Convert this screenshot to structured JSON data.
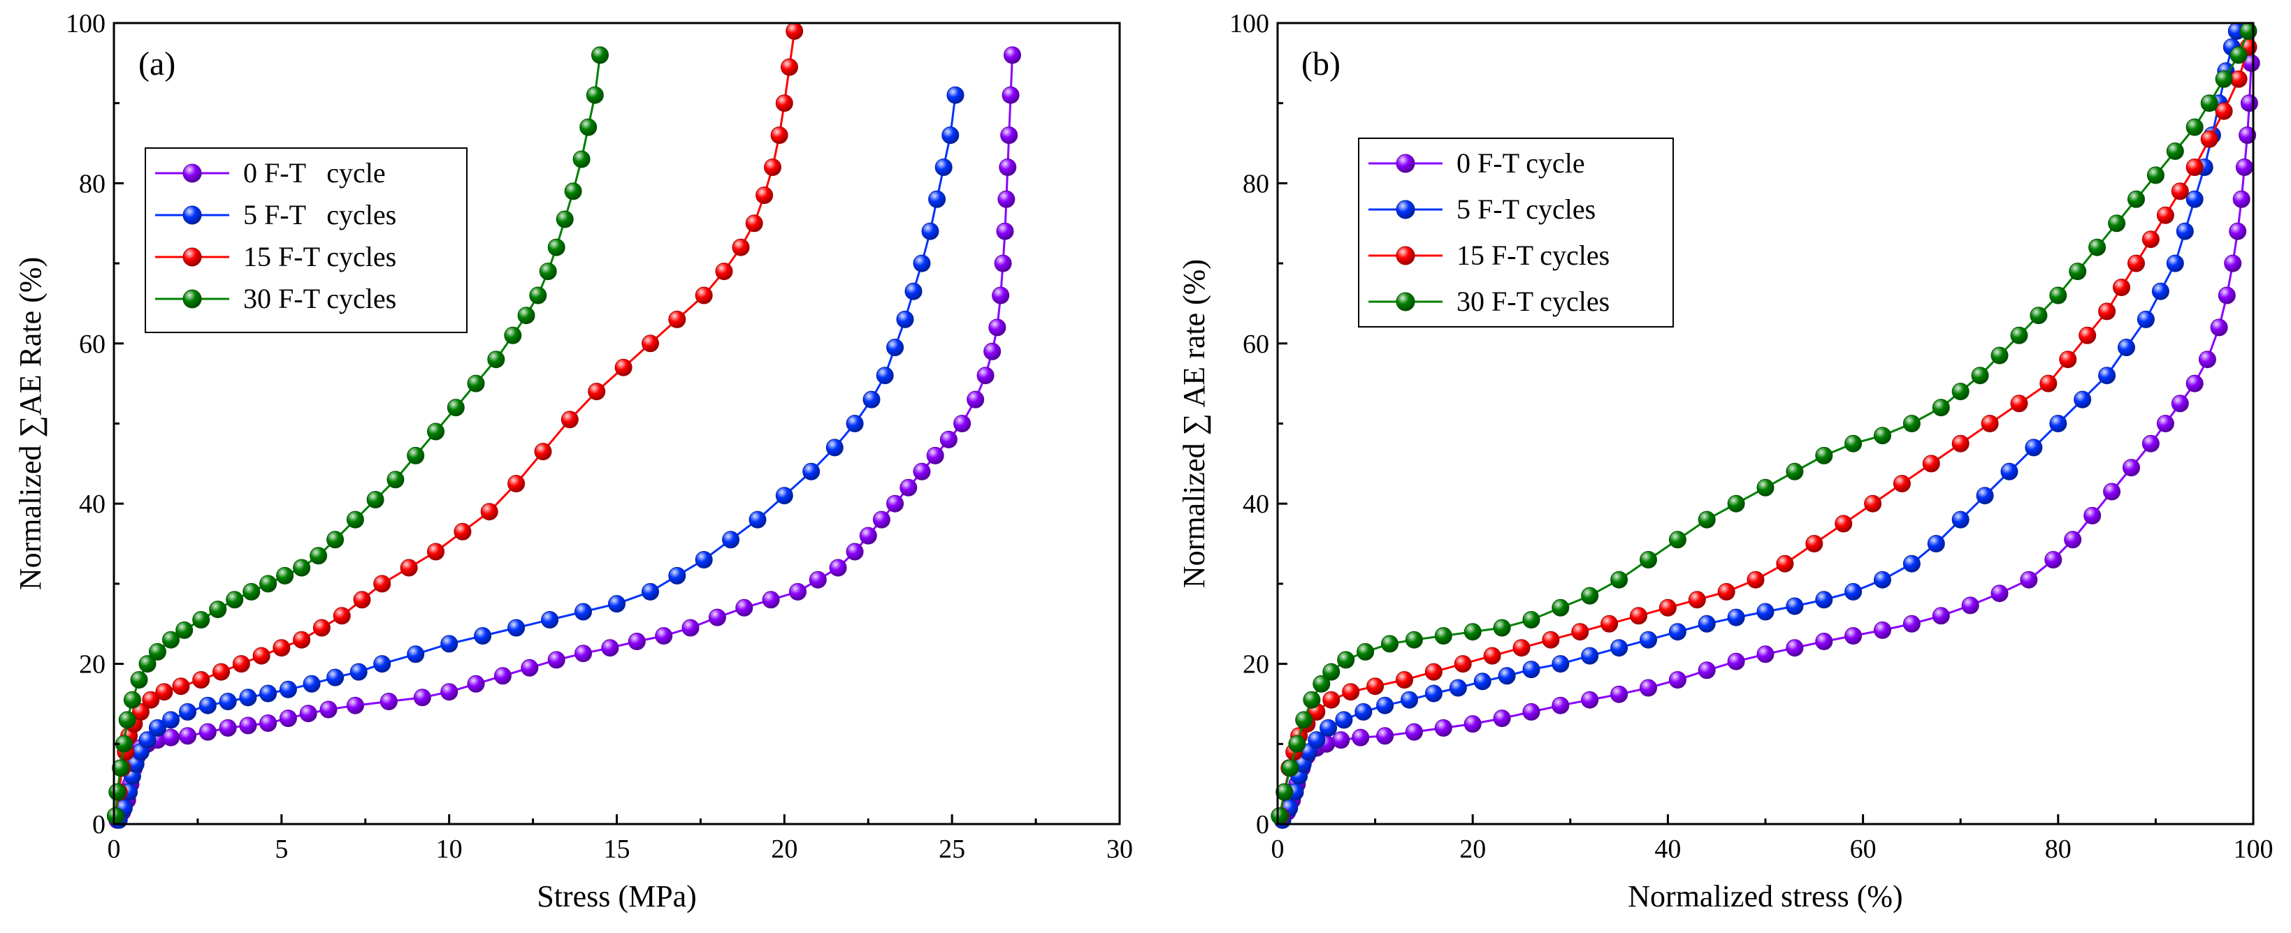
{
  "chart_data": [
    {
      "type": "line",
      "panel_label": "(a)",
      "xlabel": "Stress (MPa)",
      "ylabel": "Normalized ∑AE Rate (%)",
      "xlim": [
        0,
        30
      ],
      "ylim": [
        0,
        100
      ],
      "xticks": [
        0,
        5,
        10,
        15,
        20,
        25,
        30
      ],
      "yticks": [
        0,
        20,
        40,
        60,
        80,
        100
      ],
      "grid": false,
      "legend_position": "upper-left",
      "series": [
        {
          "name": "0 F-T   cycle",
          "color": "#8b00ff",
          "x": [
            0.1,
            0.25,
            0.4,
            0.5,
            0.6,
            0.7,
            0.8,
            1.0,
            1.3,
            1.7,
            2.2,
            2.8,
            3.4,
            4.0,
            4.6,
            5.2,
            5.8,
            6.4,
            7.2,
            8.2,
            9.2,
            10.0,
            10.8,
            11.6,
            12.4,
            13.2,
            14.0,
            14.8,
            15.6,
            16.4,
            17.2,
            18.0,
            18.8,
            19.6,
            20.4,
            21.0,
            21.6,
            22.1,
            22.5,
            22.9,
            23.3,
            23.7,
            24.1,
            24.5,
            24.9,
            25.3,
            25.7,
            26.0,
            26.2,
            26.35,
            26.45,
            26.52,
            26.58,
            26.62,
            26.66,
            26.7,
            26.75,
            26.8
          ],
          "y": [
            0.5,
            1.5,
            3,
            5,
            7,
            8.5,
            9.5,
            10,
            10.5,
            10.8,
            11,
            11.5,
            12,
            12.3,
            12.6,
            13.2,
            13.8,
            14.3,
            14.8,
            15.3,
            15.8,
            16.5,
            17.5,
            18.5,
            19.5,
            20.5,
            21.3,
            22,
            22.8,
            23.5,
            24.5,
            25.8,
            27,
            28,
            29,
            30.5,
            32,
            34,
            36,
            38,
            40,
            42,
            44,
            46,
            48,
            50,
            53,
            56,
            59,
            62,
            66,
            70,
            74,
            78,
            82,
            86,
            91,
            96
          ]
        },
        {
          "name": "5 F-T   cycles",
          "color": "#0033ff",
          "x": [
            0.15,
            0.3,
            0.45,
            0.55,
            0.65,
            0.8,
            1.0,
            1.3,
            1.7,
            2.2,
            2.8,
            3.4,
            4.0,
            4.6,
            5.2,
            5.9,
            6.6,
            7.3,
            8.0,
            9.0,
            10.0,
            11.0,
            12.0,
            13.0,
            14.0,
            15.0,
            16.0,
            16.8,
            17.6,
            18.4,
            19.2,
            20.0,
            20.8,
            21.5,
            22.1,
            22.6,
            23.0,
            23.3,
            23.6,
            23.85,
            24.1,
            24.35,
            24.55,
            24.75,
            24.95,
            25.1
          ],
          "y": [
            0.5,
            2,
            4,
            6,
            7.5,
            9,
            10.5,
            12,
            13,
            14,
            14.8,
            15.3,
            15.8,
            16.3,
            16.8,
            17.5,
            18.3,
            19,
            20,
            21.2,
            22.5,
            23.5,
            24.5,
            25.5,
            26.5,
            27.5,
            29,
            31,
            33,
            35.5,
            38,
            41,
            44,
            47,
            50,
            53,
            56,
            59.5,
            63,
            66.5,
            70,
            74,
            78,
            82,
            86,
            91
          ]
        },
        {
          "name": "15 F-T cycles",
          "color": "#ff0000",
          "x": [
            0.05,
            0.15,
            0.25,
            0.35,
            0.45,
            0.6,
            0.8,
            1.1,
            1.5,
            2.0,
            2.6,
            3.2,
            3.8,
            4.4,
            5.0,
            5.6,
            6.2,
            6.8,
            7.4,
            8.0,
            8.8,
            9.6,
            10.4,
            11.2,
            12.0,
            12.8,
            13.6,
            14.4,
            15.2,
            16.0,
            16.8,
            17.6,
            18.2,
            18.7,
            19.1,
            19.4,
            19.65,
            19.85,
            20.0,
            20.15,
            20.3
          ],
          "y": [
            1,
            4,
            7,
            9,
            11,
            12.5,
            14,
            15.5,
            16.5,
            17.2,
            18,
            19,
            20,
            21,
            22,
            23,
            24.5,
            26,
            28,
            30,
            32,
            34,
            36.5,
            39,
            42.5,
            46.5,
            50.5,
            54,
            57,
            60,
            63,
            66,
            69,
            72,
            75,
            78.5,
            82,
            86,
            90,
            94.5,
            99
          ]
        },
        {
          "name": "30 F-T cycles",
          "color": "#008000",
          "x": [
            0.05,
            0.1,
            0.2,
            0.3,
            0.4,
            0.55,
            0.75,
            1.0,
            1.3,
            1.7,
            2.1,
            2.6,
            3.1,
            3.6,
            4.1,
            4.6,
            5.1,
            5.6,
            6.1,
            6.6,
            7.2,
            7.8,
            8.4,
            9.0,
            9.6,
            10.2,
            10.8,
            11.4,
            11.9,
            12.3,
            12.65,
            12.95,
            13.2,
            13.45,
            13.7,
            13.95,
            14.15,
            14.35,
            14.5
          ],
          "y": [
            1,
            4,
            7,
            10,
            13,
            15.5,
            18,
            20,
            21.5,
            23,
            24.2,
            25.5,
            26.8,
            28,
            29,
            30,
            31,
            32,
            33.5,
            35.5,
            38,
            40.5,
            43,
            46,
            49,
            52,
            55,
            58,
            61,
            63.5,
            66,
            69,
            72,
            75.5,
            79,
            83,
            87,
            91,
            96
          ]
        }
      ]
    },
    {
      "type": "line",
      "panel_label": "(b)",
      "xlabel": "Normalized stress (%)",
      "ylabel": "Normalized ∑ AE rate (%)",
      "xlim": [
        0,
        100
      ],
      "ylim": [
        0,
        100
      ],
      "xticks": [
        0,
        20,
        40,
        60,
        80,
        100
      ],
      "yticks": [
        0,
        20,
        40,
        60,
        80,
        100
      ],
      "grid": false,
      "legend_position": "upper-left",
      "series": [
        {
          "name": "0 F-T cycle",
          "color": "#8b00ff",
          "x": [
            0.5,
            1,
            1.5,
            2,
            2.5,
            3,
            4,
            5,
            6.5,
            8.5,
            11,
            14,
            17,
            20,
            23,
            26,
            29,
            32,
            35,
            38,
            41,
            44,
            47,
            50,
            53,
            56,
            59,
            62,
            65,
            68,
            71,
            74,
            77,
            79.5,
            81.5,
            83.5,
            85.5,
            87.5,
            89.5,
            91,
            92.5,
            94,
            95.3,
            96.5,
            97.3,
            97.9,
            98.4,
            98.8,
            99.1,
            99.4,
            99.6,
            99.8
          ],
          "y": [
            0.5,
            1.5,
            3,
            5,
            7,
            8.5,
            9.5,
            10,
            10.5,
            10.8,
            11,
            11.5,
            12,
            12.5,
            13.2,
            14,
            14.8,
            15.5,
            16.2,
            17,
            18,
            19.2,
            20.3,
            21.2,
            22,
            22.8,
            23.5,
            24.2,
            25,
            26,
            27.3,
            28.8,
            30.5,
            33,
            35.5,
            38.5,
            41.5,
            44.5,
            47.5,
            50,
            52.5,
            55,
            58,
            62,
            66,
            70,
            74,
            78,
            82,
            86,
            90,
            95
          ]
        },
        {
          "name": "5 F-T cycles",
          "color": "#0033ff",
          "x": [
            0.5,
            1.2,
            1.8,
            2.2,
            2.6,
            3.2,
            4,
            5.2,
            6.8,
            8.8,
            11,
            13.5,
            16,
            18.5,
            21,
            23.5,
            26,
            29,
            32,
            35,
            38,
            41,
            44,
            47,
            50,
            53,
            56,
            59,
            62,
            65,
            67.5,
            70,
            72.5,
            75,
            77.5,
            80,
            82.5,
            85,
            87,
            89,
            90.5,
            92,
            93,
            94,
            95,
            95.8,
            96.5,
            97.2,
            97.8,
            98.3
          ],
          "y": [
            0.5,
            2,
            4,
            6,
            7.5,
            9,
            10.5,
            12,
            13,
            14,
            14.8,
            15.5,
            16.3,
            17,
            17.8,
            18.5,
            19.3,
            20,
            21,
            22,
            23,
            24,
            25,
            25.8,
            26.5,
            27.2,
            28,
            29,
            30.5,
            32.5,
            35,
            38,
            41,
            44,
            47,
            50,
            53,
            56,
            59.5,
            63,
            66.5,
            70,
            74,
            78,
            82,
            86,
            90,
            94,
            97,
            99
          ]
        },
        {
          "name": "15 F-T cycles",
          "color": "#ff0000",
          "x": [
            0.3,
            0.7,
            1.2,
            1.7,
            2.2,
            3,
            4,
            5.5,
            7.5,
            10,
            13,
            16,
            19,
            22,
            25,
            28,
            31,
            34,
            37,
            40,
            43,
            46,
            49,
            52,
            55,
            58,
            61,
            64,
            67,
            70,
            73,
            76,
            79,
            81,
            83,
            85,
            86.5,
            88,
            89.5,
            91,
            92.5,
            94,
            95.5,
            97,
            98.5,
            99.5
          ],
          "y": [
            1,
            4,
            7,
            9,
            11,
            12.5,
            14,
            15.5,
            16.5,
            17.2,
            18,
            19,
            20,
            21,
            22,
            23,
            24,
            25,
            26,
            27,
            28,
            29,
            30.5,
            32.5,
            35,
            37.5,
            40,
            42.5,
            45,
            47.5,
            50,
            52.5,
            55,
            58,
            61,
            64,
            67,
            70,
            73,
            76,
            79,
            82,
            85.5,
            89,
            93,
            97
          ]
        },
        {
          "name": "30 F-T cycles",
          "color": "#008000",
          "x": [
            0.2,
            0.7,
            1.3,
            2,
            2.7,
            3.5,
            4.5,
            5.5,
            7,
            9,
            11.5,
            14,
            17,
            20,
            23,
            26,
            29,
            32,
            35,
            38,
            41,
            44,
            47,
            50,
            53,
            56,
            59,
            62,
            65,
            68,
            70,
            72,
            74,
            76,
            78,
            80,
            82,
            84,
            86,
            88,
            90,
            92,
            94,
            95.5,
            97,
            98.5,
            99.5
          ],
          "y": [
            1,
            4,
            7,
            10,
            13,
            15.5,
            17.5,
            19,
            20.5,
            21.5,
            22.5,
            23,
            23.5,
            24,
            24.5,
            25.5,
            27,
            28.5,
            30.5,
            33,
            35.5,
            38,
            40,
            42,
            44,
            46,
            47.5,
            48.5,
            50,
            52,
            54,
            56,
            58.5,
            61,
            63.5,
            66,
            69,
            72,
            75,
            78,
            81,
            84,
            87,
            90,
            93,
            96,
            99
          ]
        }
      ]
    }
  ]
}
